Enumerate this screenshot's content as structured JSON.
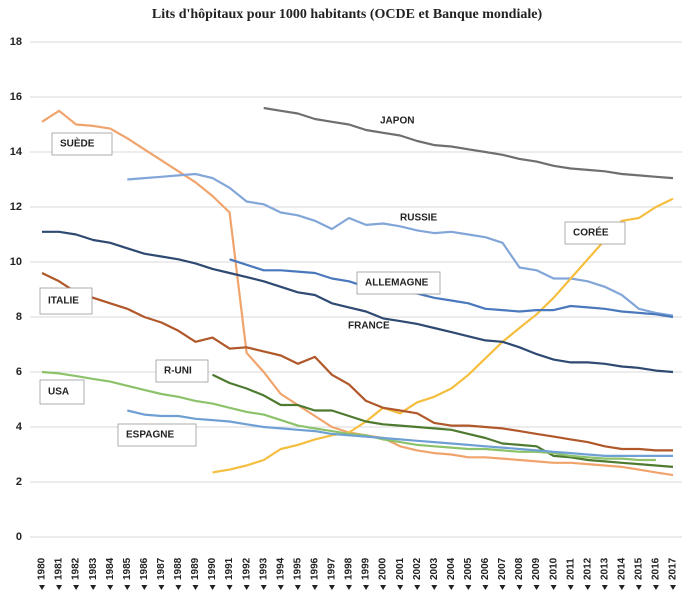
{
  "chart_data": {
    "type": "line",
    "title": "Lits d'hôpitaux pour 1000 habitants (OCDE et Banque mondiale)",
    "categories": [
      "1980",
      "1981",
      "1982",
      "1983",
      "1984",
      "1985",
      "1986",
      "1987",
      "1988",
      "1989",
      "1990",
      "1991",
      "1992",
      "1993",
      "1994",
      "1995",
      "1996",
      "1997",
      "1998",
      "1999",
      "2000",
      "2001",
      "2002",
      "2003",
      "2004",
      "2005",
      "2006",
      "2007",
      "2008",
      "2009",
      "2010",
      "2011",
      "2012",
      "2013",
      "2014",
      "2015",
      "2016",
      "2017"
    ],
    "ylim": [
      0,
      18
    ],
    "yticks": [
      0,
      2,
      4,
      6,
      8,
      10,
      12,
      14,
      16,
      18
    ],
    "grid": true,
    "series": [
      {
        "name": "SUÈDE",
        "color": "#f0a46c",
        "values": [
          15.1,
          15.5,
          15.0,
          14.95,
          14.85,
          14.5,
          14.1,
          13.7,
          13.3,
          12.9,
          12.4,
          11.8,
          6.7,
          6.0,
          5.2,
          4.8,
          4.4,
          4.0,
          3.8,
          3.7,
          3.6,
          3.3,
          3.15,
          3.05,
          3.0,
          2.9,
          2.9,
          2.85,
          2.8,
          2.75,
          2.7,
          2.7,
          2.65,
          2.6,
          2.55,
          2.45,
          2.35,
          2.25
        ]
      },
      {
        "name": "JAPON",
        "color": "#6f6f6f",
        "values": [
          null,
          null,
          null,
          null,
          null,
          null,
          null,
          null,
          null,
          null,
          null,
          null,
          null,
          15.6,
          15.5,
          15.4,
          15.2,
          15.1,
          15.0,
          14.8,
          14.7,
          14.6,
          14.4,
          14.25,
          14.2,
          14.1,
          14.0,
          13.9,
          13.75,
          13.65,
          13.5,
          13.4,
          13.35,
          13.3,
          13.2,
          13.15,
          13.1,
          13.05
        ]
      },
      {
        "name": "RUSSIE",
        "color": "#82a6d8",
        "values": [
          null,
          null,
          null,
          null,
          null,
          13.0,
          13.05,
          13.1,
          13.15,
          13.2,
          13.05,
          12.7,
          12.2,
          12.1,
          11.8,
          11.7,
          11.5,
          11.2,
          11.6,
          11.35,
          11.4,
          11.3,
          11.15,
          11.05,
          11.1,
          11.0,
          10.9,
          10.7,
          9.8,
          9.7,
          9.4,
          9.4,
          9.3,
          9.1,
          8.8,
          8.3,
          8.15,
          8.05
        ]
      },
      {
        "name": "CORÉE",
        "color": "#f5be3e",
        "values": [
          null,
          null,
          null,
          null,
          null,
          null,
          null,
          null,
          null,
          null,
          2.35,
          2.45,
          2.6,
          2.8,
          3.2,
          3.35,
          3.55,
          3.7,
          3.8,
          4.2,
          4.7,
          4.5,
          4.9,
          5.1,
          5.4,
          5.9,
          6.5,
          7.1,
          7.6,
          8.1,
          8.7,
          9.4,
          10.1,
          10.8,
          11.5,
          11.6,
          12.0,
          12.3
        ]
      },
      {
        "name": "ALLEMAGNE",
        "color": "#4a78bd",
        "values": [
          null,
          null,
          null,
          null,
          null,
          null,
          null,
          null,
          null,
          null,
          null,
          10.1,
          9.9,
          9.7,
          9.7,
          9.65,
          9.6,
          9.4,
          9.3,
          9.1,
          9.05,
          8.95,
          8.85,
          8.7,
          8.6,
          8.5,
          8.3,
          8.25,
          8.2,
          8.25,
          8.25,
          8.4,
          8.35,
          8.3,
          8.2,
          8.15,
          8.1,
          8.0
        ]
      },
      {
        "name": "FRANCE",
        "color": "#2e4a72",
        "values": [
          11.1,
          11.1,
          11.0,
          10.8,
          10.7,
          10.5,
          10.3,
          10.2,
          10.1,
          9.95,
          9.75,
          9.6,
          9.45,
          9.3,
          9.1,
          8.9,
          8.8,
          8.5,
          8.35,
          8.2,
          7.95,
          7.85,
          7.75,
          7.6,
          7.45,
          7.3,
          7.15,
          7.1,
          6.9,
          6.65,
          6.45,
          6.35,
          6.35,
          6.3,
          6.2,
          6.15,
          6.05,
          6.0
        ]
      },
      {
        "name": "ITALIE",
        "color": "#b0582a",
        "values": [
          9.6,
          9.3,
          8.9,
          8.7,
          8.5,
          8.3,
          8.0,
          7.8,
          7.5,
          7.1,
          7.25,
          6.85,
          6.9,
          6.75,
          6.6,
          6.3,
          6.55,
          5.9,
          5.55,
          4.95,
          4.7,
          4.6,
          4.5,
          4.15,
          4.05,
          4.05,
          4.0,
          3.95,
          3.85,
          3.75,
          3.65,
          3.55,
          3.45,
          3.3,
          3.2,
          3.2,
          3.15,
          3.15
        ]
      },
      {
        "name": "R-UNI",
        "color": "#4e7a30",
        "values": [
          null,
          null,
          null,
          null,
          null,
          null,
          null,
          null,
          null,
          null,
          5.9,
          5.6,
          5.4,
          5.15,
          4.8,
          4.8,
          4.6,
          4.6,
          4.4,
          4.2,
          4.1,
          4.05,
          4.0,
          3.95,
          3.9,
          3.75,
          3.6,
          3.4,
          3.35,
          3.3,
          2.95,
          2.9,
          2.8,
          2.75,
          2.7,
          2.65,
          2.6,
          2.55
        ]
      },
      {
        "name": "USA",
        "color": "#8cc26a",
        "values": [
          6.0,
          5.95,
          5.85,
          5.75,
          5.65,
          5.5,
          5.35,
          5.2,
          5.1,
          4.95,
          4.85,
          4.7,
          4.55,
          4.45,
          4.25,
          4.05,
          3.95,
          3.85,
          3.75,
          3.7,
          3.55,
          3.45,
          3.35,
          3.3,
          3.25,
          3.2,
          3.2,
          3.15,
          3.1,
          3.1,
          3.05,
          2.95,
          2.9,
          2.85,
          2.85,
          2.8,
          2.8,
          null
        ]
      },
      {
        "name": "ESPAGNE",
        "color": "#6fa0d4",
        "values": [
          null,
          null,
          null,
          null,
          null,
          4.6,
          4.45,
          4.4,
          4.4,
          4.3,
          4.25,
          4.2,
          4.1,
          4.0,
          3.95,
          3.9,
          3.85,
          3.75,
          3.7,
          3.65,
          3.6,
          3.55,
          3.5,
          3.45,
          3.4,
          3.35,
          3.3,
          3.25,
          3.2,
          3.15,
          3.1,
          3.05,
          3.0,
          2.95,
          2.95,
          2.95,
          2.95,
          2.95
        ]
      }
    ]
  }
}
